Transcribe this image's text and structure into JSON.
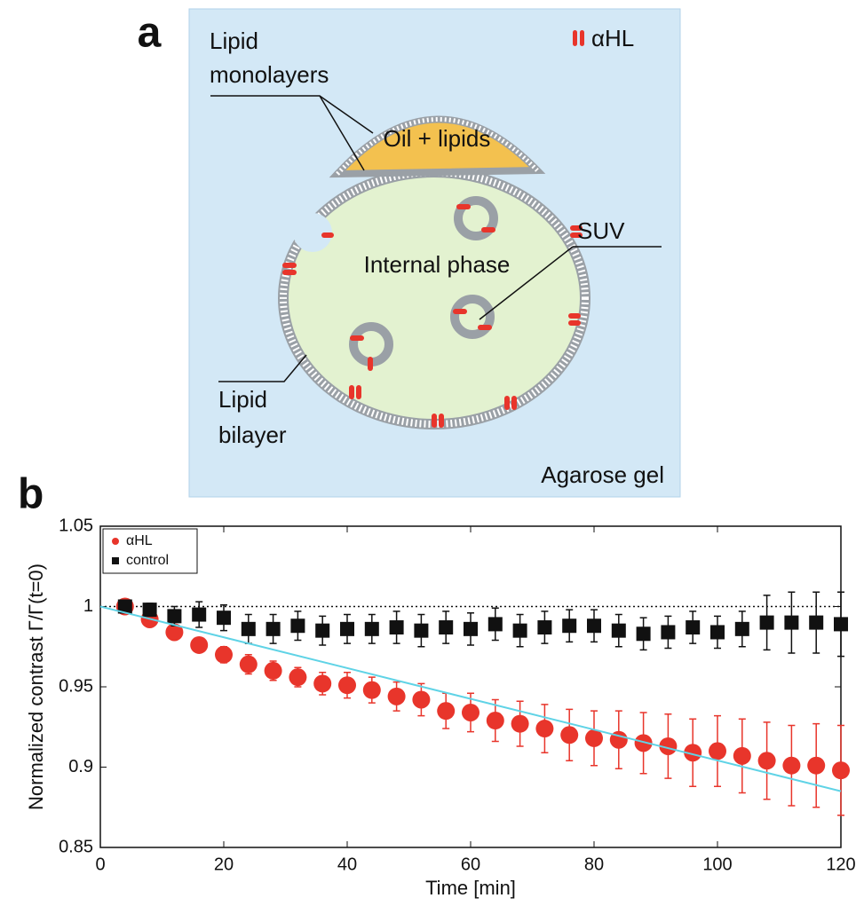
{
  "figure_labels": {
    "a": "a",
    "b": "b"
  },
  "diagram": {
    "lipid_monolayers": [
      "Lipid",
      "monolayers"
    ],
    "pore_legend": "αHL",
    "oil": "Oil + lipids",
    "suv": "SUV",
    "internal_phase": "Internal phase",
    "lipid_bilayer": [
      "Lipid",
      "bilayer"
    ],
    "agarose": "Agarose gel"
  },
  "chart_data": {
    "type": "scatter",
    "xlabel": "Time [min]",
    "ylabel": "Normalized contrast  Γ/Γ(t=0)",
    "xlim": [
      0,
      120
    ],
    "xticks": [
      0,
      20,
      40,
      60,
      80,
      100,
      120
    ],
    "ylim": [
      0.85,
      1.05
    ],
    "yticks": [
      0.85,
      0.9,
      0.95,
      1,
      1.05
    ],
    "grid": false,
    "legend": "top-left",
    "reference_y": 1,
    "x": [
      4,
      8,
      12,
      16,
      20,
      24,
      28,
      32,
      36,
      40,
      44,
      48,
      52,
      56,
      60,
      64,
      68,
      72,
      76,
      80,
      84,
      88,
      92,
      96,
      100,
      104,
      108,
      112,
      116,
      120
    ],
    "series": [
      {
        "name": "αHL",
        "color": "#e8352b",
        "marker": "circle",
        "values": [
          1.0,
          0.992,
          0.984,
          0.976,
          0.97,
          0.964,
          0.96,
          0.956,
          0.952,
          0.951,
          0.948,
          0.944,
          0.942,
          0.935,
          0.934,
          0.929,
          0.927,
          0.924,
          0.92,
          0.918,
          0.917,
          0.915,
          0.913,
          0.909,
          0.91,
          0.907,
          0.904,
          0.901,
          0.901,
          0.898
        ],
        "errors": [
          0.001,
          0.002,
          0.003,
          0.004,
          0.005,
          0.006,
          0.006,
          0.006,
          0.007,
          0.008,
          0.008,
          0.009,
          0.01,
          0.011,
          0.012,
          0.013,
          0.014,
          0.015,
          0.016,
          0.017,
          0.018,
          0.019,
          0.02,
          0.021,
          0.022,
          0.023,
          0.024,
          0.025,
          0.026,
          0.028
        ]
      },
      {
        "name": "control",
        "color": "#111111",
        "marker": "square",
        "values": [
          1.0,
          0.998,
          0.994,
          0.995,
          0.993,
          0.986,
          0.986,
          0.988,
          0.985,
          0.986,
          0.986,
          0.987,
          0.985,
          0.987,
          0.986,
          0.989,
          0.985,
          0.987,
          0.988,
          0.988,
          0.985,
          0.983,
          0.984,
          0.987,
          0.984,
          0.986,
          0.99,
          0.99,
          0.99,
          0.989
        ],
        "errors": [
          0.002,
          0.004,
          0.006,
          0.008,
          0.008,
          0.009,
          0.009,
          0.009,
          0.009,
          0.009,
          0.009,
          0.01,
          0.01,
          0.01,
          0.01,
          0.01,
          0.01,
          0.01,
          0.01,
          0.01,
          0.01,
          0.01,
          0.01,
          0.01,
          0.01,
          0.011,
          0.017,
          0.019,
          0.019,
          0.02
        ]
      }
    ],
    "fit": {
      "x": [
        0,
        120
      ],
      "values": [
        1.0,
        0.885
      ],
      "color": "#5fd3e6"
    }
  }
}
